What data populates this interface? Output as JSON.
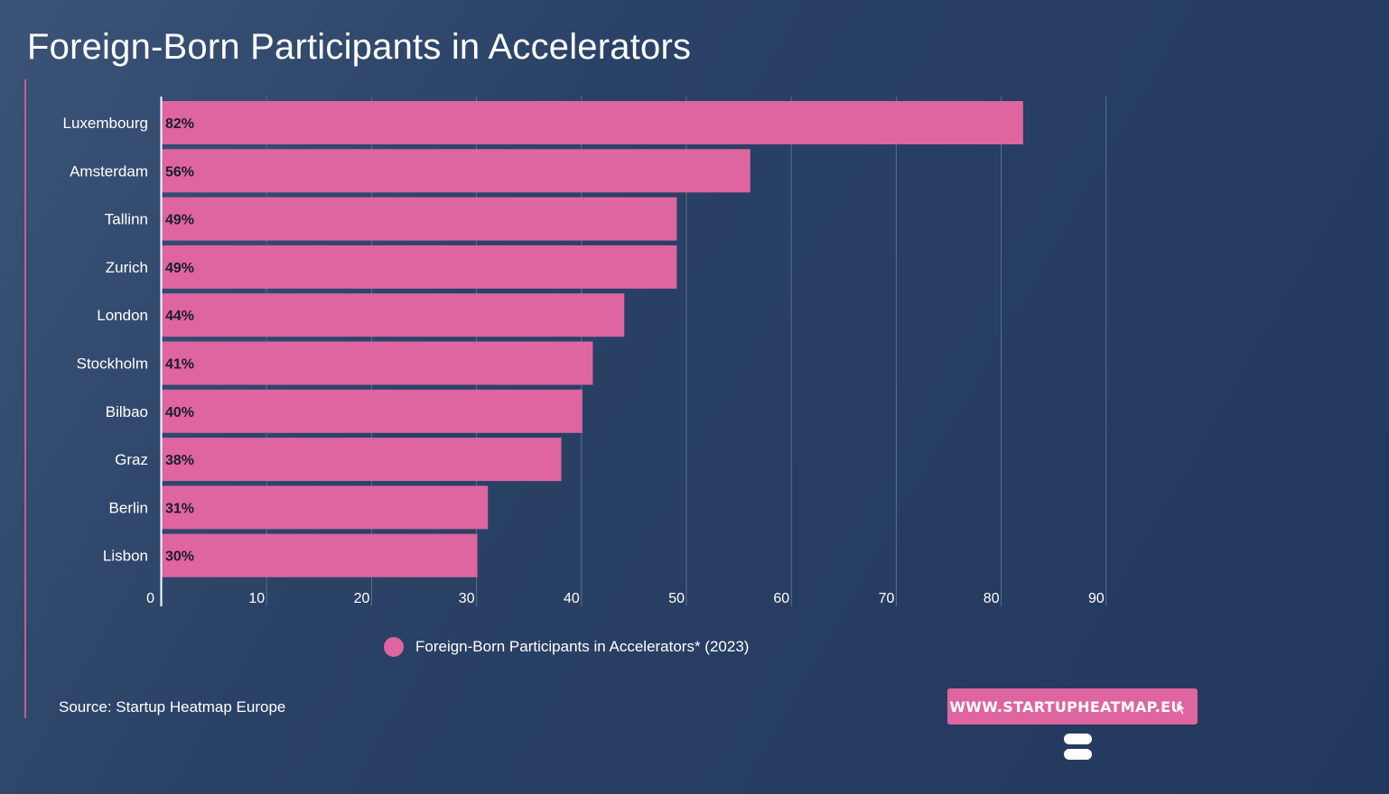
{
  "title": "Foreign-Born Participants in Accelerators",
  "legend_label": "Foreign-Born Participants in Accelerators* (2023)",
  "source": "Source: Startup Heatmap Europe",
  "brand_link": "WWW.STARTUPHEATMAP.EU",
  "icons": {
    "cursor": "cursor-arrow-icon",
    "logo": "stacked-bars-logo-icon"
  },
  "colors": {
    "bar": "#de65a0",
    "bar_label": "#1c1c2e",
    "grid": "#5a6f8e",
    "axis": "#ffffff",
    "accent": "#c45e95",
    "brand_button": "#de65a0"
  },
  "chart_data": {
    "type": "bar",
    "orientation": "horizontal",
    "categories": [
      "Luxembourg",
      "Amsterdam",
      "Tallinn",
      "Zurich",
      "London",
      "Stockholm",
      "Bilbao",
      "Graz",
      "Berlin",
      "Lisbon"
    ],
    "series": [
      {
        "name": "Foreign-Born Participants in Accelerators* (2023)",
        "values": [
          82,
          56,
          49,
          49,
          44,
          41,
          40,
          38,
          31,
          30
        ],
        "labels": [
          "82%",
          "56%",
          "49%",
          "49%",
          "44%",
          "41%",
          "40%",
          "38%",
          "31%",
          "30%"
        ]
      }
    ],
    "title": "Foreign-Born Participants in Accelerators",
    "xlim": [
      0,
      90
    ],
    "xticks": [
      0,
      10,
      20,
      30,
      40,
      50,
      60,
      70,
      80,
      90
    ],
    "grid": true,
    "legend": "bottom"
  }
}
